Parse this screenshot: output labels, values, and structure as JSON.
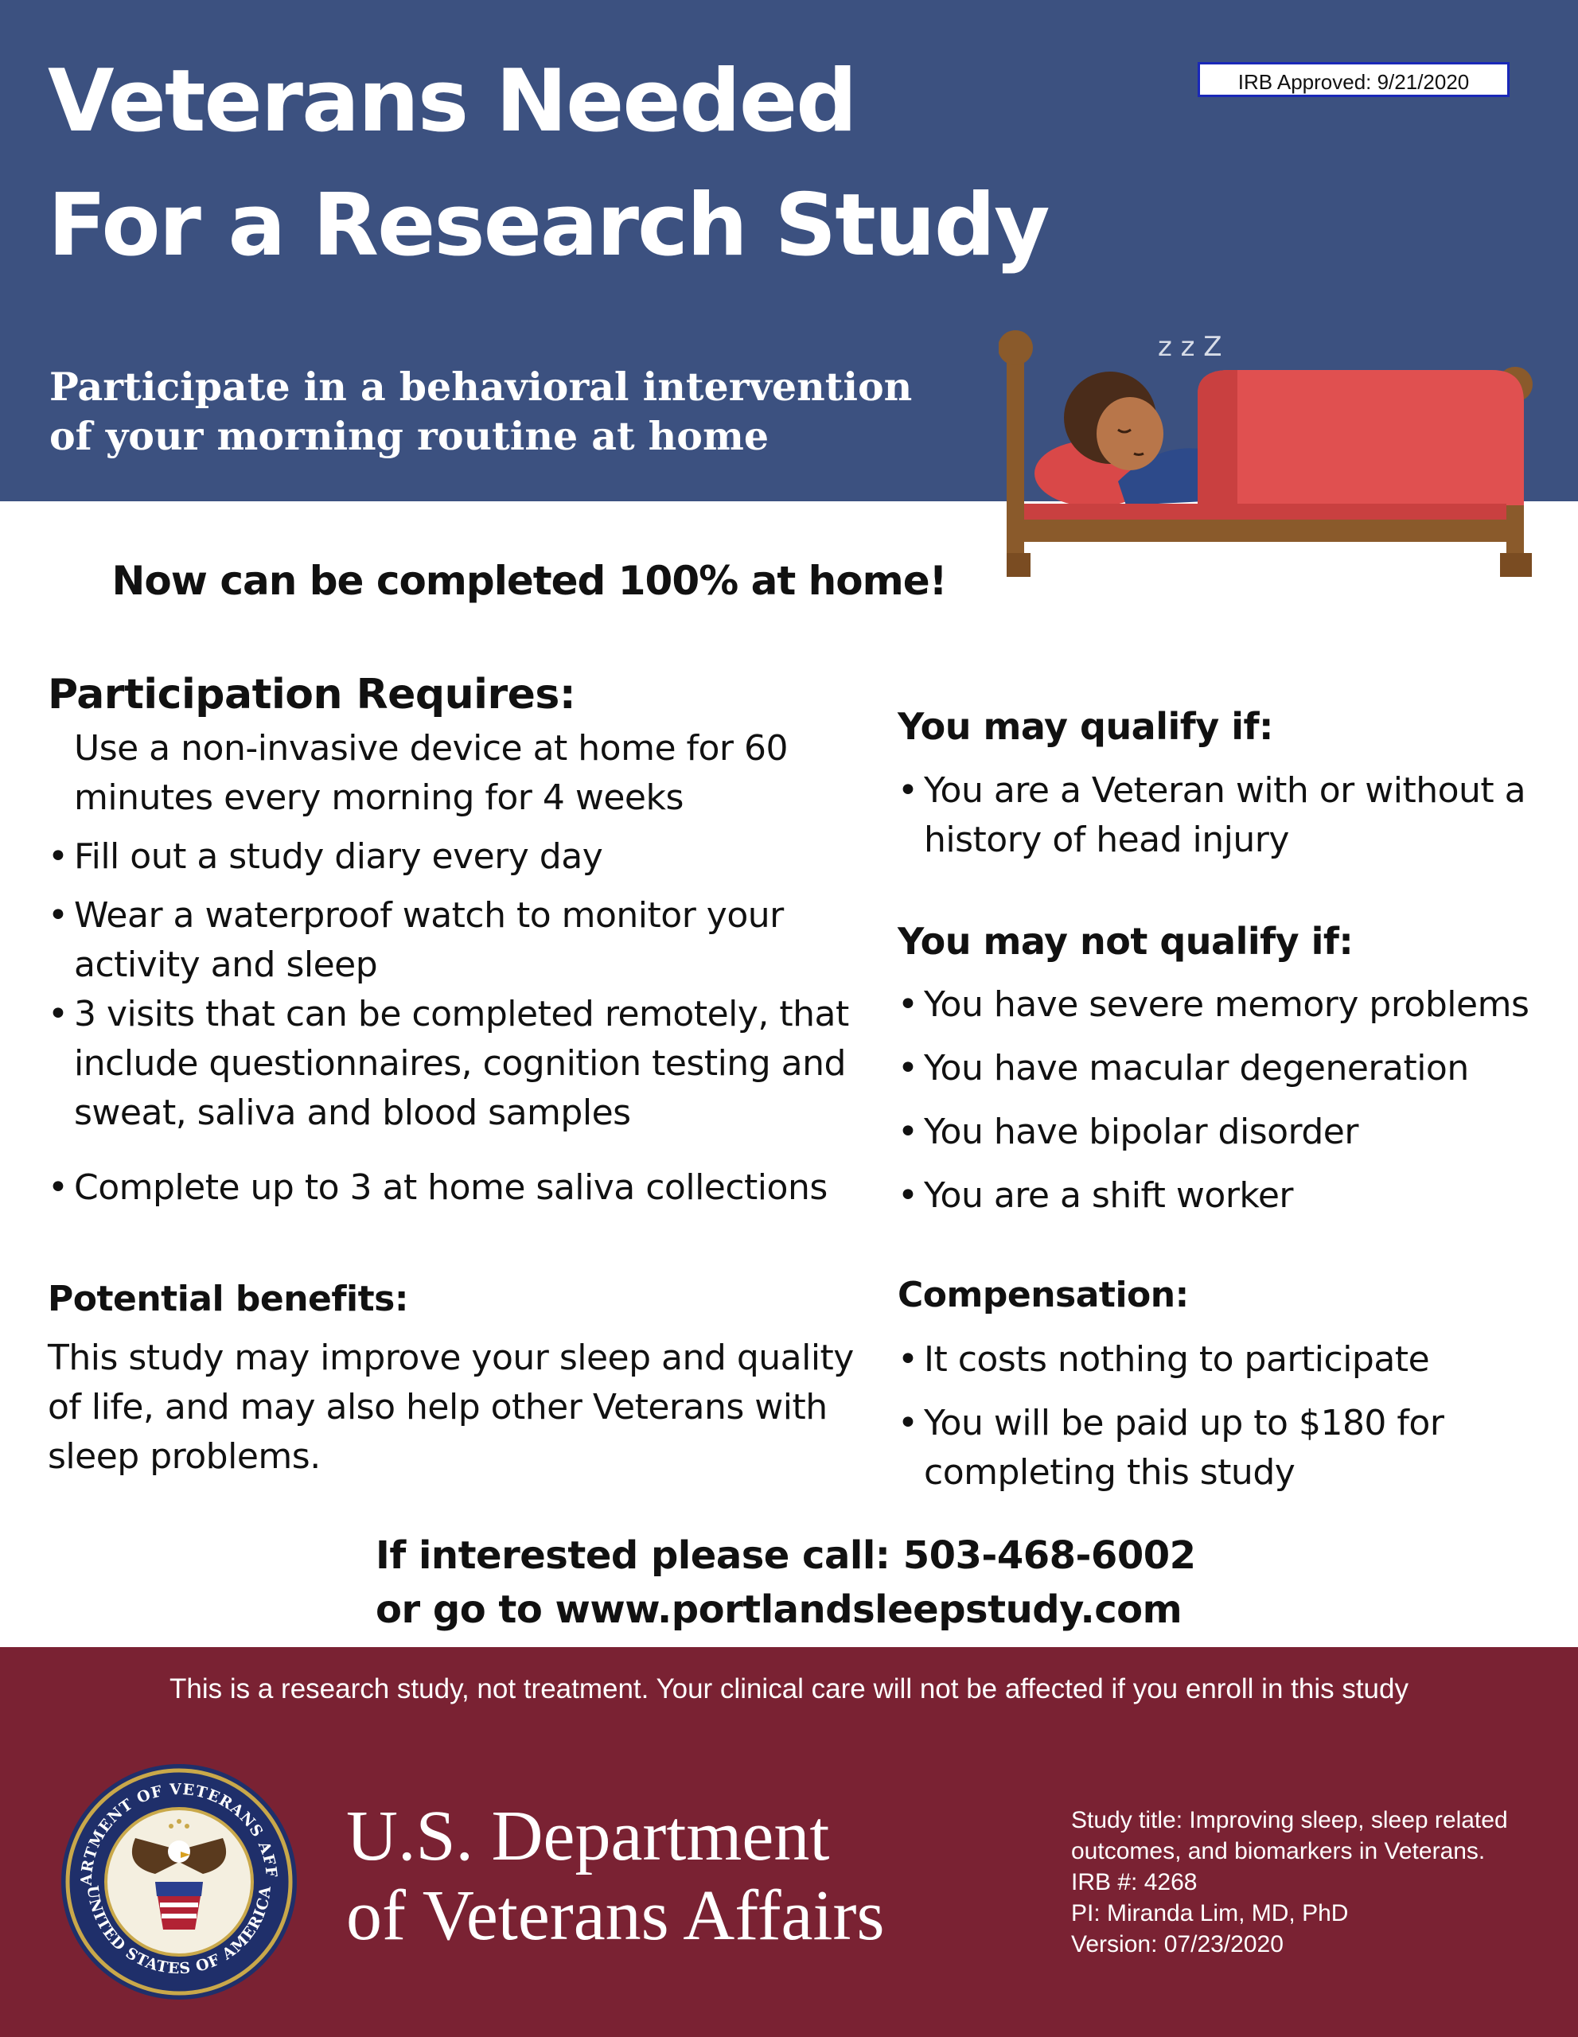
{
  "header": {
    "title_line1": "Veterans Needed",
    "title_line2": "For a Research Study",
    "irb_badge": "IRB Approved:  9/21/2020",
    "subtitle_line1": "Participate in a behavioral intervention",
    "subtitle_line2": "of your morning routine at home",
    "snore_text": "z z Z"
  },
  "highlight": "Now can be completed 100% at home!",
  "participation": {
    "heading": "Participation Requires:",
    "items": [
      {
        "bullet": "",
        "text": "Use a non-invasive device at home for 60 minutes every morning for 4 weeks"
      },
      {
        "bullet": "•",
        "text": "Fill out a study diary every day"
      },
      {
        "bullet": "•",
        "text": "Wear a waterproof watch to monitor your activity and sleep"
      },
      {
        "bullet": "•",
        "text": "3 visits that can be completed remotely, that include questionnaires, cognition testing and sweat, saliva and blood samples"
      },
      {
        "bullet": "•",
        "text": "Complete up to 3 at home saliva collections"
      }
    ]
  },
  "qualify": {
    "heading": "You may qualify if:",
    "items": [
      {
        "bullet": "•",
        "text": "You are a Veteran with or without a history of head injury"
      }
    ]
  },
  "not_qualify": {
    "heading": "You may not qualify if:",
    "items": [
      {
        "bullet": "•",
        "text": "You have severe memory problems"
      },
      {
        "bullet": "•",
        "text": "You have macular degeneration"
      },
      {
        "bullet": "•",
        "text": "You have bipolar disorder"
      },
      {
        "bullet": "•",
        "text": "You are a shift worker"
      }
    ]
  },
  "benefits": {
    "heading": "Potential benefits:",
    "text": "This study may improve your sleep and quality of life, and may also help other Veterans with sleep problems."
  },
  "compensation": {
    "heading": "Compensation:",
    "items": [
      {
        "bullet": "•",
        "text": "It costs nothing to participate"
      },
      {
        "bullet": "•",
        "text": "You will be paid up to $180 for completing this study"
      }
    ]
  },
  "contact": {
    "line1": "If interested please call: 503-468-6002",
    "line2": "or go to www.portlandsleepstudy.com"
  },
  "footer": {
    "disclaimer": "This is a research study, not treatment. Your clinical care will not be affected if you enroll in this study",
    "dept_line1": "U.S. Department",
    "dept_line2": "of Veterans Affairs",
    "seal_top_text": "DEPARTMENT OF VETERANS AFFAIRS",
    "seal_bottom_text": "UNITED STATES OF AMERICA",
    "study_title": "Study title: Improving sleep, sleep related outcomes, and biomarkers in Veterans.",
    "irb_number": "IRB #: 4268",
    "pi": "PI: Miranda Lim, MD, PhD",
    "version": "Version: 07/23/2020"
  },
  "colors": {
    "header_blue": "#3c5180",
    "footer_maroon": "#7a2233",
    "bed_wood": "#8a5a2b",
    "blanket_red": "#e05050",
    "irb_border": "#1a28b8"
  }
}
